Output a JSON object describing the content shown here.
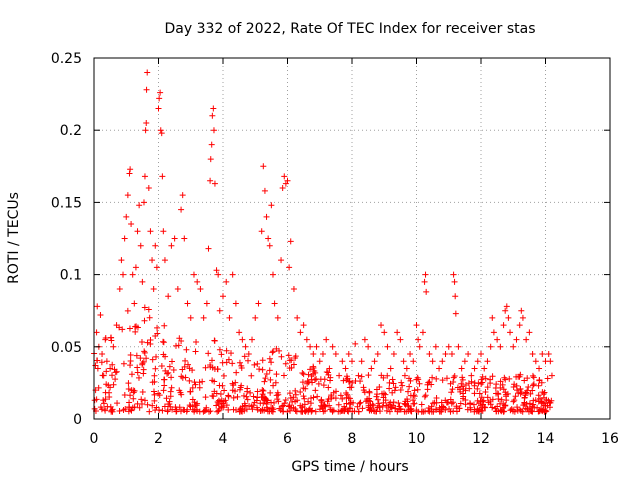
{
  "chart_data": {
    "type": "scatter",
    "title": "Day 332 of 2022, Rate Of TEC Index for receiver stas",
    "xlabel": "GPS time / hours",
    "ylabel": "ROTI / TECUs",
    "xlim": [
      0,
      16
    ],
    "ylim": [
      0,
      0.25
    ],
    "x_ticks": [
      0,
      2,
      4,
      6,
      8,
      10,
      12,
      14,
      16
    ],
    "x_tick_labels": [
      "0",
      "2",
      "4",
      "6",
      "8",
      "10",
      "12",
      "14",
      "16"
    ],
    "y_ticks": [
      0,
      0.05,
      0.1,
      0.15,
      0.2,
      0.25
    ],
    "y_tick_labels": [
      "0",
      "0.05",
      "0.1",
      "0.15",
      "0.2",
      "0.25"
    ],
    "grid": true,
    "marker": "plus",
    "color": "#ff0000",
    "series": [
      {
        "name": "ROTI",
        "points": [
          [
            0.05,
            0.02
          ],
          [
            0.08,
            0.06
          ],
          [
            0.1,
            0.078
          ],
          [
            0.12,
            0.035
          ],
          [
            0.15,
            0.05
          ],
          [
            0.2,
            0.072
          ],
          [
            0.25,
            0.045
          ],
          [
            0.3,
            0.03
          ],
          [
            0.35,
            0.055
          ],
          [
            0.4,
            0.04
          ],
          [
            0.5,
            0.035
          ],
          [
            0.6,
            0.05
          ],
          [
            0.7,
            0.065
          ],
          [
            0.8,
            0.09
          ],
          [
            0.85,
            0.11
          ],
          [
            0.9,
            0.1
          ],
          [
            0.95,
            0.125
          ],
          [
            1.0,
            0.14
          ],
          [
            1.05,
            0.155
          ],
          [
            1.1,
            0.17
          ],
          [
            1.12,
            0.173
          ],
          [
            1.15,
            0.135
          ],
          [
            1.2,
            0.1
          ],
          [
            1.25,
            0.08
          ],
          [
            1.3,
            0.105
          ],
          [
            1.35,
            0.13
          ],
          [
            1.4,
            0.148
          ],
          [
            1.45,
            0.12
          ],
          [
            1.5,
            0.095
          ],
          [
            1.55,
            0.15
          ],
          [
            1.58,
            0.168
          ],
          [
            1.6,
            0.2
          ],
          [
            1.62,
            0.205
          ],
          [
            1.63,
            0.228
          ],
          [
            1.65,
            0.24
          ],
          [
            1.7,
            0.16
          ],
          [
            1.75,
            0.13
          ],
          [
            1.8,
            0.11
          ],
          [
            1.85,
            0.09
          ],
          [
            1.9,
            0.12
          ],
          [
            1.95,
            0.105
          ],
          [
            2.0,
            0.215
          ],
          [
            2.02,
            0.222
          ],
          [
            2.05,
            0.226
          ],
          [
            2.07,
            0.2
          ],
          [
            2.1,
            0.198
          ],
          [
            2.12,
            0.168
          ],
          [
            2.15,
            0.13
          ],
          [
            2.2,
            0.11
          ],
          [
            2.3,
            0.085
          ],
          [
            2.4,
            0.12
          ],
          [
            2.5,
            0.125
          ],
          [
            2.6,
            0.09
          ],
          [
            2.7,
            0.145
          ],
          [
            2.75,
            0.155
          ],
          [
            2.8,
            0.125
          ],
          [
            2.9,
            0.08
          ],
          [
            3.0,
            0.07
          ],
          [
            3.1,
            0.1
          ],
          [
            3.2,
            0.095
          ],
          [
            3.3,
            0.09
          ],
          [
            3.4,
            0.07
          ],
          [
            3.5,
            0.08
          ],
          [
            3.55,
            0.118
          ],
          [
            3.6,
            0.165
          ],
          [
            3.62,
            0.18
          ],
          [
            3.65,
            0.19
          ],
          [
            3.67,
            0.21
          ],
          [
            3.7,
            0.215
          ],
          [
            3.72,
            0.2
          ],
          [
            3.75,
            0.163
          ],
          [
            3.8,
            0.103
          ],
          [
            3.85,
            0.1
          ],
          [
            3.9,
            0.075
          ],
          [
            4.0,
            0.085
          ],
          [
            4.1,
            0.095
          ],
          [
            4.2,
            0.07
          ],
          [
            4.3,
            0.1
          ],
          [
            4.4,
            0.08
          ],
          [
            4.5,
            0.06
          ],
          [
            4.6,
            0.055
          ],
          [
            4.7,
            0.05
          ],
          [
            4.8,
            0.045
          ],
          [
            4.9,
            0.055
          ],
          [
            5.0,
            0.07
          ],
          [
            5.1,
            0.08
          ],
          [
            5.2,
            0.13
          ],
          [
            5.25,
            0.175
          ],
          [
            5.3,
            0.158
          ],
          [
            5.35,
            0.14
          ],
          [
            5.4,
            0.125
          ],
          [
            5.45,
            0.12
          ],
          [
            5.5,
            0.148
          ],
          [
            5.55,
            0.1
          ],
          [
            5.6,
            0.08
          ],
          [
            5.7,
            0.07
          ],
          [
            5.8,
            0.11
          ],
          [
            5.85,
            0.16
          ],
          [
            5.9,
            0.168
          ],
          [
            5.95,
            0.163
          ],
          [
            6.0,
            0.165
          ],
          [
            6.05,
            0.105
          ],
          [
            6.1,
            0.123
          ],
          [
            6.2,
            0.09
          ],
          [
            6.3,
            0.07
          ],
          [
            6.4,
            0.06
          ],
          [
            6.5,
            0.065
          ],
          [
            6.6,
            0.055
          ],
          [
            6.7,
            0.05
          ],
          [
            6.8,
            0.045
          ],
          [
            6.9,
            0.05
          ],
          [
            7.0,
            0.04
          ],
          [
            7.1,
            0.045
          ],
          [
            7.2,
            0.055
          ],
          [
            7.3,
            0.035
          ],
          [
            7.4,
            0.05
          ],
          [
            7.5,
            0.045
          ],
          [
            7.6,
            0.03
          ],
          [
            7.7,
            0.04
          ],
          [
            7.8,
            0.035
          ],
          [
            7.9,
            0.045
          ],
          [
            8.0,
            0.04
          ],
          [
            8.1,
            0.052
          ],
          [
            8.2,
            0.03
          ],
          [
            8.3,
            0.04
          ],
          [
            8.4,
            0.055
          ],
          [
            8.5,
            0.05
          ],
          [
            8.6,
            0.035
          ],
          [
            8.7,
            0.04
          ],
          [
            8.8,
            0.045
          ],
          [
            8.9,
            0.065
          ],
          [
            9.0,
            0.06
          ],
          [
            9.1,
            0.05
          ],
          [
            9.2,
            0.035
          ],
          [
            9.3,
            0.045
          ],
          [
            9.4,
            0.06
          ],
          [
            9.5,
            0.055
          ],
          [
            9.6,
            0.04
          ],
          [
            9.7,
            0.035
          ],
          [
            9.8,
            0.045
          ],
          [
            9.9,
            0.04
          ],
          [
            10.0,
            0.065
          ],
          [
            10.05,
            0.055
          ],
          [
            10.1,
            0.05
          ],
          [
            10.2,
            0.06
          ],
          [
            10.25,
            0.095
          ],
          [
            10.28,
            0.1
          ],
          [
            10.3,
            0.088
          ],
          [
            10.4,
            0.045
          ],
          [
            10.5,
            0.04
          ],
          [
            10.6,
            0.05
          ],
          [
            10.7,
            0.035
          ],
          [
            10.8,
            0.04
          ],
          [
            10.9,
            0.045
          ],
          [
            11.0,
            0.05
          ],
          [
            11.1,
            0.045
          ],
          [
            11.15,
            0.1
          ],
          [
            11.18,
            0.095
          ],
          [
            11.2,
            0.085
          ],
          [
            11.22,
            0.073
          ],
          [
            11.3,
            0.05
          ],
          [
            11.4,
            0.035
          ],
          [
            11.5,
            0.04
          ],
          [
            11.6,
            0.045
          ],
          [
            11.7,
            0.03
          ],
          [
            11.8,
            0.035
          ],
          [
            11.9,
            0.04
          ],
          [
            12.0,
            0.045
          ],
          [
            12.1,
            0.035
          ],
          [
            12.2,
            0.04
          ],
          [
            12.3,
            0.05
          ],
          [
            12.35,
            0.07
          ],
          [
            12.4,
            0.06
          ],
          [
            12.5,
            0.055
          ],
          [
            12.6,
            0.05
          ],
          [
            12.7,
            0.065
          ],
          [
            12.75,
            0.075
          ],
          [
            12.8,
            0.078
          ],
          [
            12.85,
            0.07
          ],
          [
            12.9,
            0.06
          ],
          [
            13.0,
            0.05
          ],
          [
            13.1,
            0.055
          ],
          [
            13.2,
            0.065
          ],
          [
            13.25,
            0.075
          ],
          [
            13.3,
            0.07
          ],
          [
            13.4,
            0.055
          ],
          [
            13.5,
            0.06
          ],
          [
            13.6,
            0.045
          ],
          [
            13.7,
            0.04
          ],
          [
            13.8,
            0.035
          ],
          [
            13.9,
            0.045
          ],
          [
            14.0,
            0.04
          ],
          [
            14.1,
            0.045
          ],
          [
            14.15,
            0.04
          ],
          [
            14.2,
            0.03
          ]
        ],
        "dense_band": {
          "description": "dense cloud of low ROTI values spanning the whole observation window",
          "x_range": [
            0.0,
            14.2
          ],
          "upper_envelope": [
            [
              0.0,
              0.05
            ],
            [
              0.5,
              0.06
            ],
            [
              1.0,
              0.075
            ],
            [
              1.5,
              0.08
            ],
            [
              2.0,
              0.07
            ],
            [
              2.5,
              0.06
            ],
            [
              3.0,
              0.055
            ],
            [
              3.5,
              0.055
            ],
            [
              4.0,
              0.06
            ],
            [
              4.5,
              0.045
            ],
            [
              5.0,
              0.045
            ],
            [
              5.5,
              0.05
            ],
            [
              6.0,
              0.05
            ],
            [
              6.5,
              0.04
            ],
            [
              7.0,
              0.035
            ],
            [
              8.0,
              0.03
            ],
            [
              9.0,
              0.032
            ],
            [
              10.0,
              0.03
            ],
            [
              11.0,
              0.03
            ],
            [
              12.0,
              0.03
            ],
            [
              13.0,
              0.032
            ],
            [
              14.2,
              0.03
            ]
          ],
          "lower_bound": 0.005,
          "count": 900
        }
      }
    ]
  }
}
